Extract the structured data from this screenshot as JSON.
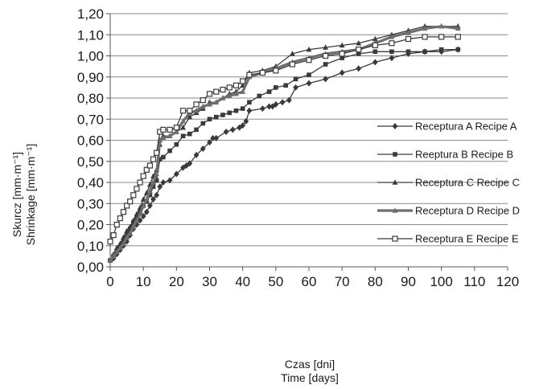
{
  "chart_data": {
    "type": "line",
    "title": "",
    "xlabel_lines": [
      "Czas [dni]",
      "Time [days]"
    ],
    "ylabel_lines": [
      "Skurcz  [mm·m⁻¹]",
      "Shrinkage  [mm·m⁻¹]"
    ],
    "xlim": [
      0,
      120
    ],
    "ylim": [
      0,
      1.2
    ],
    "x_ticks": [
      "0",
      "10",
      "20",
      "30",
      "40",
      "50",
      "60",
      "70",
      "80",
      "90",
      "100",
      "110",
      "120"
    ],
    "y_ticks": [
      "0,00",
      "0,10",
      "0,20",
      "0,30",
      "0,40",
      "0,50",
      "0,60",
      "0,70",
      "0,80",
      "0,90",
      "1,00",
      "1,10",
      "1,20"
    ],
    "grid": "horizontal",
    "legend_position": "right",
    "series": [
      {
        "name": "Receptura A Recipe A",
        "color": "#3a3a3a",
        "marker": "diamond",
        "points": [
          [
            0,
            0.03
          ],
          [
            1,
            0.04
          ],
          [
            2,
            0.06
          ],
          [
            3,
            0.08
          ],
          [
            4,
            0.1
          ],
          [
            5,
            0.12
          ],
          [
            6,
            0.15
          ],
          [
            7,
            0.18
          ],
          [
            8,
            0.2
          ],
          [
            9,
            0.22
          ],
          [
            10,
            0.24
          ],
          [
            11,
            0.26
          ],
          [
            12,
            0.29
          ],
          [
            13,
            0.32
          ],
          [
            14,
            0.34
          ],
          [
            15,
            0.38
          ],
          [
            16,
            0.4
          ],
          [
            18,
            0.41
          ],
          [
            20,
            0.44
          ],
          [
            22,
            0.47
          ],
          [
            23,
            0.48
          ],
          [
            24,
            0.49
          ],
          [
            26,
            0.53
          ],
          [
            28,
            0.56
          ],
          [
            30,
            0.59
          ],
          [
            31,
            0.61
          ],
          [
            32,
            0.61
          ],
          [
            35,
            0.64
          ],
          [
            37,
            0.65
          ],
          [
            39,
            0.66
          ],
          [
            40,
            0.67
          ],
          [
            41,
            0.69
          ],
          [
            42,
            0.74
          ],
          [
            46,
            0.75
          ],
          [
            48,
            0.76
          ],
          [
            49,
            0.76
          ],
          [
            50,
            0.77
          ],
          [
            52,
            0.78
          ],
          [
            54,
            0.79
          ],
          [
            56,
            0.85
          ],
          [
            60,
            0.87
          ],
          [
            65,
            0.89
          ],
          [
            70,
            0.92
          ],
          [
            75,
            0.94
          ],
          [
            80,
            0.97
          ],
          [
            85,
            0.99
          ],
          [
            90,
            1.01
          ],
          [
            95,
            1.02
          ],
          [
            100,
            1.02
          ],
          [
            105,
            1.03
          ]
        ]
      },
      {
        "name": "Reeptura B Recipe B",
        "color": "#3a3a3a",
        "marker": "square",
        "points": [
          [
            0,
            0.03
          ],
          [
            1,
            0.05
          ],
          [
            2,
            0.07
          ],
          [
            3,
            0.09
          ],
          [
            4,
            0.12
          ],
          [
            5,
            0.15
          ],
          [
            6,
            0.18
          ],
          [
            7,
            0.21
          ],
          [
            8,
            0.23
          ],
          [
            9,
            0.26
          ],
          [
            10,
            0.29
          ],
          [
            11,
            0.31
          ],
          [
            12,
            0.34
          ],
          [
            13,
            0.38
          ],
          [
            14,
            0.41
          ],
          [
            15,
            0.51
          ],
          [
            16,
            0.52
          ],
          [
            18,
            0.55
          ],
          [
            20,
            0.58
          ],
          [
            22,
            0.62
          ],
          [
            24,
            0.63
          ],
          [
            26,
            0.65
          ],
          [
            28,
            0.68
          ],
          [
            30,
            0.7
          ],
          [
            32,
            0.71
          ],
          [
            34,
            0.72
          ],
          [
            36,
            0.73
          ],
          [
            38,
            0.74
          ],
          [
            40,
            0.75
          ],
          [
            42,
            0.78
          ],
          [
            45,
            0.81
          ],
          [
            48,
            0.83
          ],
          [
            50,
            0.85
          ],
          [
            53,
            0.86
          ],
          [
            56,
            0.89
          ],
          [
            60,
            0.91
          ],
          [
            65,
            0.96
          ],
          [
            70,
            0.99
          ],
          [
            75,
            1.01
          ],
          [
            80,
            1.02
          ],
          [
            85,
            1.02
          ],
          [
            90,
            1.02
          ],
          [
            95,
            1.02
          ],
          [
            100,
            1.03
          ],
          [
            105,
            1.03
          ]
        ]
      },
      {
        "name": "Receptura C Recipe C",
        "color": "#3a3a3a",
        "marker": "triangle",
        "points": [
          [
            0,
            0.03
          ],
          [
            1,
            0.06
          ],
          [
            2,
            0.09
          ],
          [
            3,
            0.11
          ],
          [
            4,
            0.14
          ],
          [
            5,
            0.17
          ],
          [
            6,
            0.19
          ],
          [
            7,
            0.22
          ],
          [
            8,
            0.25
          ],
          [
            9,
            0.28
          ],
          [
            10,
            0.32
          ],
          [
            11,
            0.35
          ],
          [
            12,
            0.39
          ],
          [
            13,
            0.43
          ],
          [
            14,
            0.46
          ],
          [
            15,
            0.58
          ],
          [
            16,
            0.62
          ],
          [
            18,
            0.62
          ],
          [
            20,
            0.64
          ],
          [
            22,
            0.66
          ],
          [
            24,
            0.71
          ],
          [
            26,
            0.73
          ],
          [
            28,
            0.75
          ],
          [
            30,
            0.78
          ],
          [
            32,
            0.78
          ],
          [
            34,
            0.8
          ],
          [
            36,
            0.82
          ],
          [
            38,
            0.83
          ],
          [
            40,
            0.86
          ],
          [
            42,
            0.92
          ],
          [
            46,
            0.93
          ],
          [
            50,
            0.95
          ],
          [
            55,
            1.01
          ],
          [
            60,
            1.03
          ],
          [
            65,
            1.04
          ],
          [
            70,
            1.05
          ],
          [
            75,
            1.06
          ],
          [
            80,
            1.08
          ],
          [
            85,
            1.1
          ],
          [
            90,
            1.12
          ],
          [
            95,
            1.14
          ],
          [
            100,
            1.14
          ],
          [
            105,
            1.14
          ]
        ]
      },
      {
        "name": "Receptura D Recipe D",
        "color": "#6e6e6e",
        "marker": "triangle",
        "thick": true,
        "points": [
          [
            0,
            0.03
          ],
          [
            1,
            0.05
          ],
          [
            2,
            0.07
          ],
          [
            3,
            0.09
          ],
          [
            4,
            0.11
          ],
          [
            5,
            0.14
          ],
          [
            6,
            0.16
          ],
          [
            7,
            0.19
          ],
          [
            8,
            0.22
          ],
          [
            9,
            0.25
          ],
          [
            10,
            0.29
          ],
          [
            11,
            0.32
          ],
          [
            12,
            0.36
          ],
          [
            13,
            0.4
          ],
          [
            14,
            0.44
          ],
          [
            15,
            0.6
          ],
          [
            16,
            0.61
          ],
          [
            18,
            0.62
          ],
          [
            20,
            0.64
          ],
          [
            22,
            0.69
          ],
          [
            24,
            0.73
          ],
          [
            26,
            0.74
          ],
          [
            28,
            0.76
          ],
          [
            30,
            0.77
          ],
          [
            32,
            0.78
          ],
          [
            34,
            0.8
          ],
          [
            36,
            0.81
          ],
          [
            38,
            0.82
          ],
          [
            40,
            0.83
          ],
          [
            42,
            0.9
          ],
          [
            46,
            0.92
          ],
          [
            50,
            0.94
          ],
          [
            55,
            0.97
          ],
          [
            60,
            0.99
          ],
          [
            65,
            1.01
          ],
          [
            70,
            1.02
          ],
          [
            75,
            1.03
          ],
          [
            80,
            1.06
          ],
          [
            85,
            1.09
          ],
          [
            90,
            1.11
          ],
          [
            95,
            1.13
          ],
          [
            100,
            1.14
          ],
          [
            105,
            1.13
          ]
        ]
      },
      {
        "name": "Receptura E Recipe E",
        "color": "#3a3a3a",
        "marker": "square-x",
        "points": [
          [
            0,
            0.12
          ],
          [
            1,
            0.15
          ],
          [
            2,
            0.2
          ],
          [
            3,
            0.23
          ],
          [
            4,
            0.26
          ],
          [
            5,
            0.29
          ],
          [
            6,
            0.31
          ],
          [
            7,
            0.34
          ],
          [
            8,
            0.37
          ],
          [
            9,
            0.4
          ],
          [
            10,
            0.43
          ],
          [
            11,
            0.46
          ],
          [
            12,
            0.48
          ],
          [
            13,
            0.51
          ],
          [
            14,
            0.54
          ],
          [
            15,
            0.64
          ],
          [
            16,
            0.65
          ],
          [
            18,
            0.65
          ],
          [
            20,
            0.66
          ],
          [
            22,
            0.74
          ],
          [
            24,
            0.74
          ],
          [
            26,
            0.77
          ],
          [
            28,
            0.79
          ],
          [
            30,
            0.82
          ],
          [
            32,
            0.83
          ],
          [
            34,
            0.84
          ],
          [
            36,
            0.85
          ],
          [
            38,
            0.86
          ],
          [
            40,
            0.88
          ],
          [
            42,
            0.91
          ],
          [
            46,
            0.92
          ],
          [
            50,
            0.93
          ],
          [
            55,
            0.96
          ],
          [
            60,
            0.98
          ],
          [
            65,
            1.0
          ],
          [
            70,
            1.01
          ],
          [
            75,
            1.03
          ],
          [
            80,
            1.05
          ],
          [
            85,
            1.06
          ],
          [
            90,
            1.08
          ],
          [
            95,
            1.09
          ],
          [
            100,
            1.09
          ],
          [
            105,
            1.09
          ]
        ]
      }
    ]
  }
}
